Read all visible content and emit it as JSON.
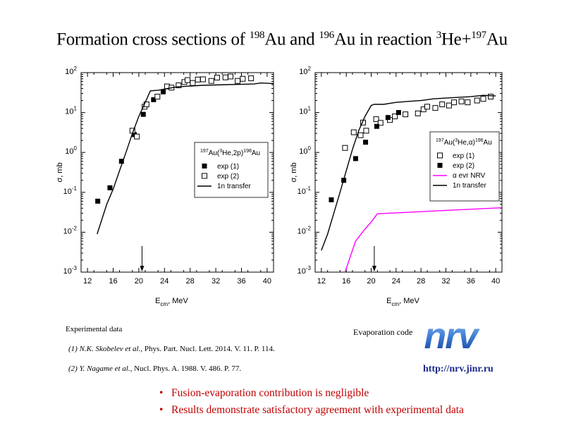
{
  "title": {
    "pre": "Formation cross sections of ",
    "iso1_mass": "198",
    "iso1_el": "Au and ",
    "iso2_mass": "196",
    "iso2_el": "Au in reaction ",
    "proj_mass": "3",
    "proj_el": "He+",
    "targ_mass": "197",
    "targ_el": "Au"
  },
  "chart_data": [
    {
      "type": "scatter",
      "xlabel": "E_cm, MeV",
      "ylabel": "σ, mb",
      "xlim": [
        11,
        41
      ],
      "ylim_log10": [
        -3,
        2
      ],
      "log_y": true,
      "xticks": [
        12,
        16,
        20,
        24,
        28,
        32,
        36,
        40
      ],
      "yticks": [
        {
          "exp": -3
        },
        {
          "exp": -2
        },
        {
          "exp": -1
        },
        {
          "exp": 0
        },
        {
          "exp": 1
        },
        {
          "exp": 2
        }
      ],
      "arrow_x": 20.5,
      "legend": {
        "placement": "right",
        "title": "197Au(3He,2p)198Au",
        "title_parts": {
          "a": "197",
          "b": "Au(",
          "c": "3",
          "d": "He,2p)",
          "e": "198",
          "f": "Au"
        },
        "items": [
          "exp (1)",
          "exp (2)",
          "1n transfer"
        ]
      },
      "series": [
        {
          "name": "exp (1)",
          "marker": "filled-square",
          "color": "#000000",
          "points": [
            [
              13.6,
              0.06
            ],
            [
              15.5,
              0.13
            ],
            [
              17.3,
              0.6
            ],
            [
              19.3,
              2.8
            ],
            [
              20.7,
              9
            ],
            [
              22.3,
              21
            ],
            [
              23.8,
              33
            ]
          ]
        },
        {
          "name": "exp (2)",
          "marker": "open-square",
          "color": "#000000",
          "points": [
            [
              19.0,
              3.5
            ],
            [
              19.7,
              2.5
            ],
            [
              20.9,
              14
            ],
            [
              21.2,
              16
            ],
            [
              22.9,
              25
            ],
            [
              24.4,
              45
            ],
            [
              25.1,
              42
            ],
            [
              26.2,
              48
            ],
            [
              27.1,
              58
            ],
            [
              27.6,
              65
            ],
            [
              28.4,
              55
            ],
            [
              29.2,
              67
            ],
            [
              30.0,
              68
            ],
            [
              31.3,
              62
            ],
            [
              32.2,
              75
            ],
            [
              33.5,
              76
            ],
            [
              34.3,
              80
            ],
            [
              35.4,
              62
            ],
            [
              36.2,
              70
            ],
            [
              37.5,
              72
            ]
          ]
        },
        {
          "name": "1n transfer",
          "marker": "line",
          "color": "#000000",
          "points": [
            [
              13.5,
              0.009
            ],
            [
              15,
              0.05
            ],
            [
              16,
              0.12
            ],
            [
              17,
              0.35
            ],
            [
              18,
              1.0
            ],
            [
              19,
              3
            ],
            [
              20,
              8
            ],
            [
              21,
              18
            ],
            [
              21.8,
              35
            ],
            [
              23,
              36
            ],
            [
              24.5,
              40
            ],
            [
              26,
              44
            ],
            [
              28,
              46
            ],
            [
              30,
              48
            ],
            [
              32,
              49
            ],
            [
              34,
              50
            ],
            [
              36,
              51
            ],
            [
              38,
              52
            ],
            [
              39,
              55
            ],
            [
              40,
              54
            ],
            [
              41,
              53
            ]
          ]
        }
      ]
    },
    {
      "type": "scatter",
      "xlabel": "E_cm, MeV",
      "ylabel": "σ, mb",
      "xlim": [
        11,
        41
      ],
      "ylim_log10": [
        -3,
        2
      ],
      "log_y": true,
      "xticks": [
        12,
        16,
        20,
        24,
        28,
        32,
        36,
        40
      ],
      "yticks": [
        {
          "exp": -3
        },
        {
          "exp": -2
        },
        {
          "exp": -1
        },
        {
          "exp": 0
        },
        {
          "exp": 1
        },
        {
          "exp": 2
        }
      ],
      "arrow_x": 20.5,
      "legend": {
        "placement": "right",
        "title": "197Au(3He,α)196Au",
        "title_parts": {
          "a": "197",
          "b": "Au(",
          "c": "3",
          "d": "He,α)",
          "e": "196",
          "f": "Au"
        },
        "items": [
          "exp (1)",
          "exp (2)",
          "α evr NRV",
          "1n transfer"
        ]
      },
      "series": [
        {
          "name": "exp (1)",
          "marker": "open-square",
          "color": "#000000",
          "points": [
            [
              15.8,
              1.3
            ],
            [
              17.2,
              3.2
            ],
            [
              18.3,
              2.7
            ],
            [
              18.7,
              5.6
            ],
            [
              19.2,
              3.5
            ],
            [
              20.8,
              6.8
            ],
            [
              21.5,
              5.5
            ],
            [
              23.0,
              6.5
            ],
            [
              23.8,
              8
            ],
            [
              25.5,
              9
            ],
            [
              27.5,
              9.5
            ],
            [
              28.4,
              12
            ],
            [
              29.0,
              14
            ],
            [
              30.3,
              13
            ],
            [
              31.4,
              16
            ],
            [
              32.5,
              15
            ],
            [
              33.3,
              18
            ],
            [
              34.5,
              19
            ],
            [
              35.5,
              18
            ],
            [
              37.0,
              20
            ],
            [
              38.0,
              22
            ],
            [
              39.2,
              25
            ]
          ]
        },
        {
          "name": "exp (2)",
          "marker": "filled-square",
          "color": "#000000",
          "points": [
            [
              13.6,
              0.065
            ],
            [
              15.6,
              0.2
            ],
            [
              17.5,
              0.7
            ],
            [
              19.1,
              1.8
            ],
            [
              20.9,
              4.5
            ],
            [
              22.7,
              7.5
            ],
            [
              24.4,
              10
            ]
          ]
        },
        {
          "name": "α evr NRV",
          "marker": "line",
          "color": "#ff00ff",
          "points": [
            [
              15.8,
              0.001
            ],
            [
              17.5,
              0.006
            ],
            [
              19.0,
              0.012
            ],
            [
              20.0,
              0.018
            ],
            [
              21.0,
              0.029
            ],
            [
              25,
              0.031
            ],
            [
              30,
              0.034
            ],
            [
              35,
              0.037
            ],
            [
              41,
              0.041
            ]
          ]
        },
        {
          "name": "1n transfer",
          "marker": "line",
          "color": "#000000",
          "points": [
            [
              12,
              0.0035
            ],
            [
              13,
              0.009
            ],
            [
              14,
              0.03
            ],
            [
              15,
              0.1
            ],
            [
              16,
              0.35
            ],
            [
              17,
              1.2
            ],
            [
              18,
              3.5
            ],
            [
              19,
              8
            ],
            [
              20,
              15
            ],
            [
              20.5,
              16
            ],
            [
              22,
              16
            ],
            [
              24,
              18
            ],
            [
              26,
              19
            ],
            [
              28,
              20
            ],
            [
              30,
              22
            ],
            [
              32,
              23
            ],
            [
              34,
              24
            ],
            [
              36,
              25
            ],
            [
              38,
              27
            ],
            [
              40,
              26
            ]
          ]
        }
      ]
    }
  ],
  "refs": {
    "head": "Experimental  data",
    "r1_auth": "(1) N.K. Skobelev et al.",
    "r1_rest": ", Phys. Part. Nucl. Lett. 2014. V. 11. P. 114.",
    "r2_auth": "(2) Y. Nagame et al.,",
    "r2_rest": " Nucl. Phys. A. 1988. V. 486. P. 77."
  },
  "evap_label": "Evaporation code",
  "logo_text": "nrv",
  "url": "http://nrv.jinr.ru",
  "bullets": [
    "Fusion-evaporation contribution is negligible",
    "Results demonstrate satisfactory agreement with experimental data"
  ],
  "colors": {
    "bullet_text": "#c00000",
    "url": "#1a2a8a",
    "logo_blue": "#3f7fd6",
    "nrv_line": "#ff00ff"
  }
}
